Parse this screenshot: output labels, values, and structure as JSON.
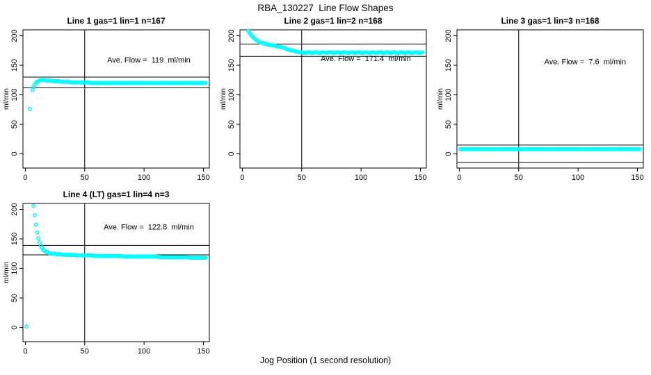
{
  "page": {
    "main_title": "RBA_130227  Line Flow Shapes",
    "x_axis_label": "Jog Position (1 second resolution)",
    "background_color": "#ffffff",
    "point_color": "#00ffff",
    "line_color": "#000000"
  },
  "chart_data": [
    {
      "type": "scatter",
      "title": "Line 1 gas=1 lin=1 n=167",
      "ave_flow_label": "Ave. Flow =  119  ml/min",
      "ave_flow_ml_min": 119,
      "n": 167,
      "ylabel": "ml/min",
      "x_ticks": [
        0,
        50,
        100,
        150
      ],
      "y_ticks": [
        0,
        50,
        100,
        150,
        200
      ],
      "xlim": [
        -2,
        155
      ],
      "ylim": [
        -24,
        210
      ],
      "vline_x": 50,
      "hlines": [
        130,
        112
      ],
      "label_pos": {
        "x": 104,
        "y": 155
      },
      "segments": [
        [
          [
            4,
            76
          ]
        ],
        [
          [
            6,
            108
          ],
          [
            7,
            113
          ],
          [
            8,
            117
          ],
          [
            9,
            120
          ],
          [
            10,
            122
          ],
          [
            11,
            123
          ],
          [
            12,
            124
          ],
          [
            13,
            125
          ],
          [
            14,
            125
          ],
          [
            16,
            125
          ],
          [
            18,
            124
          ],
          [
            20,
            124
          ],
          [
            22,
            124
          ],
          [
            24,
            123
          ],
          [
            26,
            123
          ],
          [
            28,
            123
          ],
          [
            30,
            122
          ],
          [
            33,
            122
          ],
          [
            36,
            122
          ],
          [
            40,
            121
          ],
          [
            44,
            121
          ],
          [
            48,
            121
          ],
          [
            52,
            121
          ],
          [
            56,
            120
          ],
          [
            60,
            120
          ],
          [
            65,
            120
          ],
          [
            70,
            120
          ],
          [
            75,
            120
          ],
          [
            80,
            120
          ],
          [
            85,
            120
          ],
          [
            90,
            120
          ],
          [
            95,
            120
          ],
          [
            100,
            120
          ],
          [
            105,
            120
          ],
          [
            110,
            120
          ],
          [
            115,
            120
          ],
          [
            120,
            120
          ],
          [
            125,
            120
          ],
          [
            130,
            120
          ],
          [
            135,
            120
          ],
          [
            140,
            120
          ],
          [
            145,
            120
          ],
          [
            150,
            120
          ],
          [
            152,
            120
          ]
        ]
      ]
    },
    {
      "type": "scatter",
      "title": "Line 2 gas=1 lin=2 n=168",
      "ave_flow_label": "Ave. Flow =  171.4  ml/min",
      "ave_flow_ml_min": 171.4,
      "n": 168,
      "ylabel": "ml/min",
      "x_ticks": [
        0,
        50,
        100,
        150
      ],
      "y_ticks": [
        0,
        50,
        100,
        150,
        200
      ],
      "xlim": [
        -2,
        155
      ],
      "ylim": [
        -24,
        210
      ],
      "vline_x": 50,
      "hlines": [
        186,
        165
      ],
      "label_pos": {
        "x": 104,
        "y": 157
      },
      "segments": [
        [
          [
            5,
            208
          ],
          [
            6,
            205
          ],
          [
            7,
            203
          ],
          [
            8,
            200
          ],
          [
            9,
            198
          ],
          [
            10,
            196
          ],
          [
            11,
            194
          ],
          [
            12,
            193
          ],
          [
            13,
            191
          ],
          [
            14,
            190
          ],
          [
            15,
            189
          ],
          [
            16,
            188
          ],
          [
            17,
            188
          ],
          [
            18,
            187
          ],
          [
            19,
            187
          ],
          [
            20,
            186
          ],
          [
            22,
            185
          ],
          [
            24,
            184
          ],
          [
            26,
            184
          ],
          [
            28,
            183
          ],
          [
            30,
            182
          ],
          [
            32,
            181
          ],
          [
            34,
            180
          ],
          [
            36,
            179
          ],
          [
            38,
            177
          ],
          [
            40,
            176
          ],
          [
            42,
            175
          ],
          [
            44,
            174
          ],
          [
            46,
            173
          ],
          [
            48,
            172
          ],
          [
            50,
            172
          ],
          [
            53,
            171
          ],
          [
            56,
            172
          ],
          [
            59,
            171
          ],
          [
            62,
            172
          ],
          [
            65,
            171
          ],
          [
            68,
            172
          ],
          [
            71,
            171
          ],
          [
            74,
            172
          ],
          [
            77,
            171
          ],
          [
            80,
            172
          ],
          [
            83,
            171
          ],
          [
            86,
            172
          ],
          [
            89,
            171
          ],
          [
            92,
            172
          ],
          [
            95,
            171
          ],
          [
            98,
            172
          ],
          [
            101,
            171
          ],
          [
            104,
            172
          ],
          [
            107,
            171
          ],
          [
            110,
            172
          ],
          [
            113,
            171
          ],
          [
            116,
            172
          ],
          [
            119,
            171
          ],
          [
            122,
            172
          ],
          [
            125,
            171
          ],
          [
            128,
            172
          ],
          [
            131,
            171
          ],
          [
            134,
            172
          ],
          [
            137,
            171
          ],
          [
            140,
            172
          ],
          [
            143,
            171
          ],
          [
            146,
            172
          ],
          [
            149,
            171
          ],
          [
            152,
            172
          ]
        ]
      ]
    },
    {
      "type": "scatter",
      "title": "Line 3 gas=1 lin=3 n=168",
      "ave_flow_label": "Ave. Flow =  7.6  ml/min",
      "ave_flow_ml_min": 7.6,
      "n": 168,
      "ylabel": "ml/min",
      "x_ticks": [
        0,
        50,
        100,
        150
      ],
      "y_ticks": [
        0,
        50,
        100,
        150,
        200
      ],
      "xlim": [
        -2,
        155
      ],
      "ylim": [
        -24,
        210
      ],
      "vline_x": 50,
      "hlines": [
        15,
        -14
      ],
      "label_pos": {
        "x": 106,
        "y": 152
      },
      "segments": [
        [
          [
            1,
            8
          ],
          [
            5,
            8
          ],
          [
            10,
            8
          ],
          [
            15,
            8
          ],
          [
            20,
            8
          ],
          [
            25,
            8
          ],
          [
            30,
            8
          ],
          [
            35,
            8
          ],
          [
            40,
            8
          ],
          [
            45,
            8
          ],
          [
            50,
            8
          ],
          [
            55,
            8
          ],
          [
            60,
            8
          ],
          [
            65,
            8
          ],
          [
            70,
            8
          ],
          [
            75,
            8
          ],
          [
            80,
            8
          ],
          [
            85,
            8
          ],
          [
            90,
            8
          ],
          [
            95,
            8
          ],
          [
            100,
            8
          ],
          [
            105,
            8
          ],
          [
            110,
            8
          ],
          [
            115,
            8
          ],
          [
            120,
            8
          ],
          [
            125,
            8
          ],
          [
            130,
            8
          ],
          [
            135,
            8
          ],
          [
            140,
            8
          ],
          [
            145,
            8
          ],
          [
            150,
            8
          ],
          [
            152,
            8
          ]
        ]
      ]
    },
    {
      "type": "scatter",
      "title": "Line 4 (LT) gas=1 lin=4 n=3",
      "ave_flow_label": "Ave. Flow =  122.8  ml/min",
      "ave_flow_ml_min": 122.8,
      "n": 3,
      "ylabel": "ml/min",
      "x_ticks": [
        0,
        50,
        100,
        150
      ],
      "y_ticks": [
        0,
        50,
        100,
        150,
        200
      ],
      "xlim": [
        -2,
        155
      ],
      "ylim": [
        -24,
        210
      ],
      "vline_x": 50,
      "hlines": [
        139,
        123
      ],
      "label_pos": {
        "x": 104,
        "y": 166
      },
      "segments": [
        [
          [
            1,
            2
          ]
        ],
        [
          [
            7,
            206
          ],
          [
            8,
            190
          ],
          [
            9,
            174
          ],
          [
            10,
            161
          ],
          [
            11,
            151
          ],
          [
            12,
            144
          ],
          [
            13,
            139
          ],
          [
            14,
            135
          ],
          [
            15,
            132
          ],
          [
            16,
            130
          ],
          [
            17,
            129
          ],
          [
            18,
            128
          ],
          [
            19,
            127
          ],
          [
            20,
            126
          ],
          [
            22,
            125
          ],
          [
            24,
            125
          ],
          [
            26,
            124
          ],
          [
            28,
            124
          ],
          [
            30,
            124
          ],
          [
            33,
            123
          ],
          [
            36,
            123
          ],
          [
            40,
            123
          ],
          [
            44,
            122
          ],
          [
            48,
            122
          ],
          [
            52,
            122
          ],
          [
            56,
            122
          ],
          [
            60,
            121
          ],
          [
            65,
            121
          ],
          [
            70,
            121
          ],
          [
            75,
            121
          ],
          [
            80,
            121
          ],
          [
            85,
            120
          ],
          [
            90,
            120
          ],
          [
            95,
            120
          ],
          [
            100,
            120
          ],
          [
            105,
            120
          ],
          [
            110,
            120
          ],
          [
            115,
            119
          ],
          [
            120,
            119
          ],
          [
            125,
            119
          ],
          [
            130,
            119
          ],
          [
            135,
            119
          ],
          [
            140,
            118
          ],
          [
            145,
            118
          ],
          [
            150,
            118
          ],
          [
            152,
            118
          ]
        ]
      ]
    }
  ]
}
